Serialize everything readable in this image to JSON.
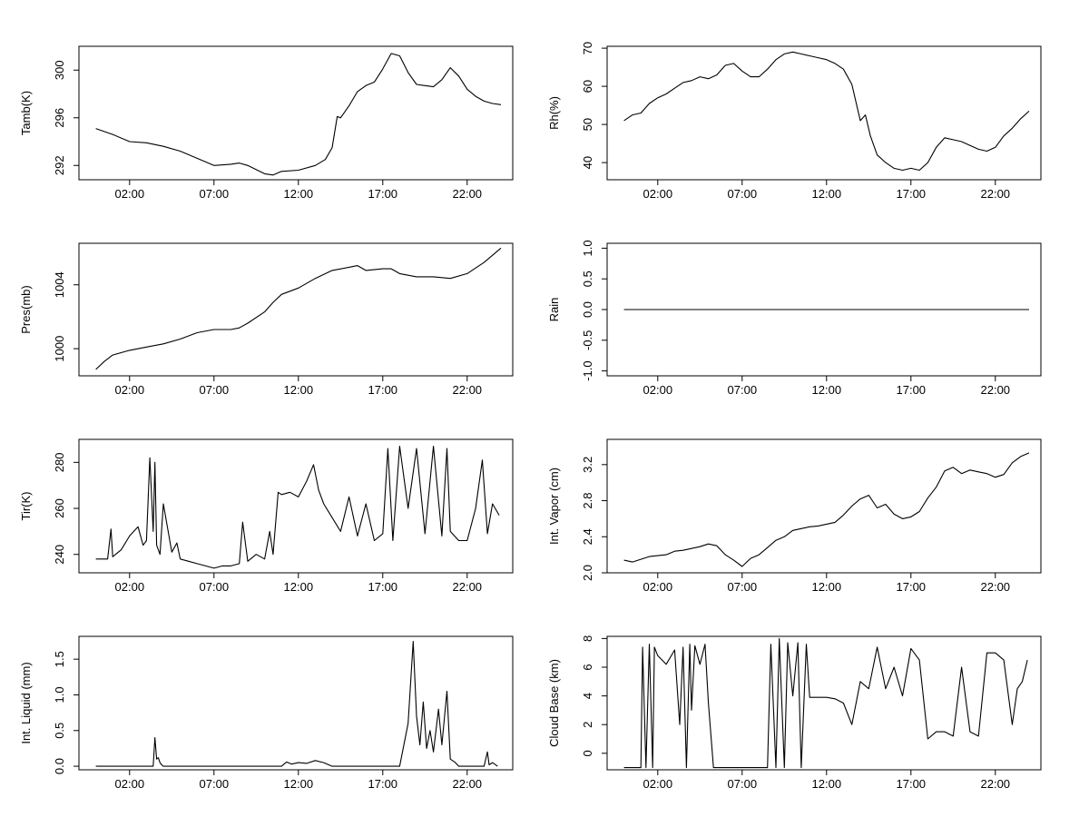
{
  "chart_data": [
    {
      "type": "line",
      "ylabel": "Tamb(K)",
      "x_ticks": [
        "02:00",
        "07:00",
        "12:00",
        "17:00",
        "22:00"
      ],
      "y_ticks": [
        "292",
        "296",
        "300"
      ],
      "ylim": [
        290.8,
        302.0
      ],
      "x_unit": "hour",
      "xlim": [
        -1.0,
        24.7
      ],
      "x": [
        0.0,
        1.0,
        2.0,
        3.0,
        4.0,
        5.0,
        6.0,
        7.0,
        8.0,
        8.5,
        9.0,
        10.0,
        10.5,
        11.0,
        12.0,
        13.0,
        13.6,
        14.0,
        14.3,
        14.5,
        15.0,
        15.5,
        16.0,
        16.5,
        17.0,
        17.5,
        18.0,
        18.5,
        19.0,
        19.5,
        20.0,
        20.5,
        21.0,
        21.5,
        22.0,
        22.5,
        23.0,
        23.5,
        24.0
      ],
      "y": [
        295.1,
        294.6,
        294.0,
        293.9,
        293.6,
        293.2,
        292.6,
        292.0,
        292.1,
        292.2,
        292.0,
        291.3,
        291.2,
        291.5,
        291.6,
        292.0,
        292.5,
        293.5,
        296.1,
        296.0,
        297.0,
        298.2,
        298.7,
        299.0,
        300.1,
        301.4,
        301.2,
        299.8,
        298.8,
        298.7,
        298.6,
        299.2,
        300.2,
        299.5,
        298.4,
        297.8,
        297.4,
        297.2,
        297.1
      ]
    },
    {
      "type": "line",
      "ylabel": "Rh(%)",
      "x_ticks": [
        "02:00",
        "07:00",
        "12:00",
        "17:00",
        "22:00"
      ],
      "y_ticks": [
        "40",
        "50",
        "60",
        "70"
      ],
      "ylim": [
        35.5,
        70.5
      ],
      "x_unit": "hour",
      "xlim": [
        -1.0,
        24.7
      ],
      "x": [
        0.0,
        0.5,
        1.0,
        1.5,
        2.0,
        2.5,
        3.0,
        3.5,
        4.0,
        4.5,
        5.0,
        5.5,
        6.0,
        6.5,
        7.0,
        7.5,
        8.0,
        8.5,
        9.0,
        9.5,
        10.0,
        10.5,
        11.0,
        11.5,
        12.0,
        12.5,
        13.0,
        13.5,
        14.0,
        14.3,
        14.6,
        15.0,
        15.5,
        16.0,
        16.5,
        17.0,
        17.5,
        18.0,
        18.5,
        19.0,
        19.5,
        20.0,
        20.5,
        21.0,
        21.5,
        22.0,
        22.5,
        23.0,
        23.5,
        24.0
      ],
      "y": [
        51,
        52.5,
        53,
        55.5,
        57,
        58,
        59.5,
        61,
        61.5,
        62.5,
        62,
        63,
        65.5,
        66,
        64,
        62.5,
        62.5,
        64.5,
        67,
        68.5,
        69,
        68.5,
        68,
        67.5,
        67,
        66,
        64.5,
        60.5,
        51,
        52.5,
        47,
        42,
        40,
        38.5,
        38,
        38.5,
        38,
        40,
        44,
        46.5,
        46,
        45.5,
        44.5,
        43.5,
        43,
        44,
        47,
        49,
        51.5,
        53.5
      ]
    },
    {
      "type": "line",
      "ylabel": "Pres(mb)",
      "x_ticks": [
        "02:00",
        "07:00",
        "12:00",
        "17:00",
        "22:00"
      ],
      "y_ticks": [
        "1000",
        "1004"
      ],
      "ylim": [
        998.3,
        1006.6
      ],
      "x_unit": "hour",
      "xlim": [
        -1.0,
        24.7
      ],
      "x": [
        0.0,
        0.5,
        1.0,
        2.0,
        3.0,
        4.0,
        5.0,
        6.0,
        7.0,
        8.0,
        8.5,
        9.0,
        10.0,
        10.5,
        11.0,
        12.0,
        13.0,
        14.0,
        15.0,
        15.5,
        16.0,
        17.0,
        17.5,
        18.0,
        19.0,
        20.0,
        21.0,
        22.0,
        23.0,
        24.0
      ],
      "y": [
        998.7,
        999.2,
        999.6,
        999.9,
        1000.1,
        1000.3,
        1000.6,
        1001.0,
        1001.2,
        1001.2,
        1001.3,
        1001.6,
        1002.3,
        1002.9,
        1003.4,
        1003.8,
        1004.4,
        1004.9,
        1005.1,
        1005.2,
        1004.9,
        1005.0,
        1005.0,
        1004.7,
        1004.5,
        1004.5,
        1004.4,
        1004.7,
        1005.4,
        1006.3
      ]
    },
    {
      "type": "line",
      "ylabel": "Rain",
      "x_ticks": [
        "02:00",
        "07:00",
        "12:00",
        "17:00",
        "22:00"
      ],
      "y_ticks": [
        "-1.0",
        "-0.5",
        "0.0",
        "0.5",
        "1.0"
      ],
      "ylim": [
        -1.08,
        1.08
      ],
      "x_unit": "hour",
      "xlim": [
        -1.0,
        24.7
      ],
      "x": [
        0.0,
        24.0
      ],
      "y": [
        0.0,
        0.0
      ]
    },
    {
      "type": "line",
      "ylabel": "Tir(K)",
      "x_ticks": [
        "02:00",
        "07:00",
        "12:00",
        "17:00",
        "22:00"
      ],
      "y_ticks": [
        "240",
        "260",
        "280"
      ],
      "ylim": [
        232,
        290
      ],
      "x_unit": "hour",
      "xlim": [
        -1.0,
        24.7
      ],
      "x": [
        0.0,
        0.7,
        0.9,
        1.0,
        1.5,
        2.0,
        2.5,
        2.8,
        3.0,
        3.2,
        3.4,
        3.5,
        3.6,
        3.8,
        4.0,
        4.5,
        4.8,
        5.0,
        5.5,
        6.0,
        7.0,
        7.5,
        8.0,
        8.5,
        8.7,
        9.0,
        9.5,
        10.0,
        10.3,
        10.5,
        10.8,
        11.0,
        11.5,
        12.0,
        12.5,
        12.9,
        13.2,
        13.5,
        14.0,
        14.5,
        15.0,
        15.5,
        16.0,
        16.5,
        17.0,
        17.3,
        17.6,
        18.0,
        18.5,
        19.0,
        19.5,
        20.0,
        20.5,
        20.8,
        21.0,
        21.5,
        22.0,
        22.5,
        22.9,
        23.2,
        23.5,
        23.9
      ],
      "y": [
        238,
        238,
        251,
        239,
        242,
        248,
        252,
        244,
        246,
        282,
        250,
        280,
        244,
        240,
        262,
        241,
        245,
        238,
        237,
        236,
        234,
        235,
        235,
        236,
        254,
        237,
        240,
        238,
        250,
        240,
        267,
        266,
        267,
        265,
        272,
        279,
        268,
        262,
        256,
        250,
        265,
        248,
        262,
        246,
        249,
        286,
        246,
        287,
        260,
        286,
        249,
        287,
        248,
        286,
        250,
        246,
        246,
        260,
        281,
        249,
        262,
        257
      ]
    },
    {
      "type": "line",
      "ylabel": "Int. Vapor (cm)",
      "x_ticks": [
        "02:00",
        "07:00",
        "12:00",
        "17:00",
        "22:00"
      ],
      "y_ticks": [
        "2.0",
        "2.4",
        "2.8",
        "3.2"
      ],
      "ylim": [
        2.0,
        3.48
      ],
      "x_unit": "hour",
      "xlim": [
        -1.0,
        24.7
      ],
      "x": [
        0.0,
        0.5,
        1.0,
        1.5,
        2.0,
        2.5,
        3.0,
        3.5,
        4.0,
        4.5,
        5.0,
        5.5,
        6.0,
        6.5,
        7.0,
        7.5,
        8.0,
        8.5,
        9.0,
        9.5,
        10.0,
        10.5,
        11.0,
        11.5,
        12.0,
        12.5,
        13.0,
        13.5,
        14.0,
        14.5,
        15.0,
        15.5,
        16.0,
        16.5,
        17.0,
        17.5,
        18.0,
        18.5,
        19.0,
        19.5,
        20.0,
        20.5,
        21.0,
        21.5,
        22.0,
        22.5,
        23.0,
        23.5,
        24.0
      ],
      "y": [
        2.14,
        2.12,
        2.15,
        2.18,
        2.19,
        2.2,
        2.24,
        2.25,
        2.27,
        2.29,
        2.32,
        2.3,
        2.2,
        2.14,
        2.07,
        2.16,
        2.2,
        2.28,
        2.36,
        2.4,
        2.47,
        2.49,
        2.51,
        2.52,
        2.54,
        2.56,
        2.64,
        2.74,
        2.82,
        2.86,
        2.72,
        2.76,
        2.65,
        2.6,
        2.62,
        2.68,
        2.83,
        2.95,
        3.13,
        3.17,
        3.1,
        3.14,
        3.12,
        3.1,
        3.06,
        3.09,
        3.22,
        3.29,
        3.33
      ]
    },
    {
      "type": "line",
      "ylabel": "Int. Liquid (mm)",
      "x_ticks": [
        "02:00",
        "07:00",
        "12:00",
        "17:00",
        "22:00"
      ],
      "y_ticks": [
        "0.0",
        "0.5",
        "1.0",
        "1.5"
      ],
      "ylim": [
        -0.05,
        1.82
      ],
      "x_unit": "hour",
      "xlim": [
        -1.0,
        24.7
      ],
      "x": [
        0.0,
        3.4,
        3.5,
        3.6,
        3.7,
        3.8,
        3.9,
        4.0,
        11.0,
        11.3,
        11.6,
        12.0,
        12.5,
        13.0,
        13.5,
        14.0,
        18.0,
        18.5,
        18.8,
        19.0,
        19.2,
        19.4,
        19.6,
        19.8,
        20.0,
        20.3,
        20.5,
        20.8,
        21.0,
        21.3,
        21.5,
        22.0,
        23.0,
        23.2,
        23.3,
        23.5,
        23.8
      ],
      "y": [
        0.0,
        0.0,
        0.4,
        0.1,
        0.12,
        0.05,
        0.02,
        0.0,
        0.0,
        0.06,
        0.03,
        0.05,
        0.04,
        0.08,
        0.05,
        0.0,
        0.0,
        0.6,
        1.75,
        0.7,
        0.3,
        0.9,
        0.25,
        0.5,
        0.2,
        0.8,
        0.3,
        1.05,
        0.1,
        0.05,
        0.0,
        0.0,
        0.0,
        0.2,
        0.02,
        0.05,
        0.0
      ]
    },
    {
      "type": "line",
      "ylabel": "Cloud Base (km)",
      "x_ticks": [
        "02:00",
        "07:00",
        "12:00",
        "17:00",
        "22:00"
      ],
      "y_ticks": [
        "0",
        "2",
        "4",
        "6",
        "8"
      ],
      "ylim": [
        -1.15,
        8.15
      ],
      "x_unit": "hour",
      "xlim": [
        -1.0,
        24.7
      ],
      "x": [
        0.0,
        1.0,
        1.1,
        1.3,
        1.5,
        1.7,
        1.8,
        2.0,
        2.5,
        3.0,
        3.3,
        3.5,
        3.7,
        3.9,
        4.0,
        4.2,
        4.5,
        4.8,
        5.0,
        5.3,
        7.0,
        8.5,
        8.7,
        9.0,
        9.2,
        9.5,
        9.7,
        10.0,
        10.3,
        10.5,
        10.8,
        11.0,
        12.0,
        12.5,
        13.0,
        13.5,
        14.0,
        14.5,
        15.0,
        15.5,
        16.0,
        16.5,
        17.0,
        17.5,
        18.0,
        18.5,
        19.0,
        19.5,
        20.0,
        20.5,
        21.0,
        21.5,
        22.0,
        22.5,
        23.0,
        23.3,
        23.6,
        23.9
      ],
      "y": [
        -1,
        -1,
        7.4,
        -1,
        7.6,
        -1,
        7.4,
        6.8,
        6.2,
        7.2,
        2,
        7.4,
        -1,
        7.6,
        3,
        7.5,
        6.2,
        7.6,
        3.5,
        -1,
        -1,
        -1,
        7.6,
        -1,
        8,
        -1,
        7.7,
        4,
        7.7,
        -1,
        7.6,
        3.9,
        3.9,
        3.8,
        3.5,
        2,
        5,
        4.5,
        7.4,
        4.5,
        6,
        4,
        7.3,
        6.5,
        1,
        1.5,
        1.5,
        1.2,
        6,
        1.5,
        1.2,
        7,
        7,
        6.5,
        2,
        4.5,
        5,
        6.5
      ]
    }
  ]
}
